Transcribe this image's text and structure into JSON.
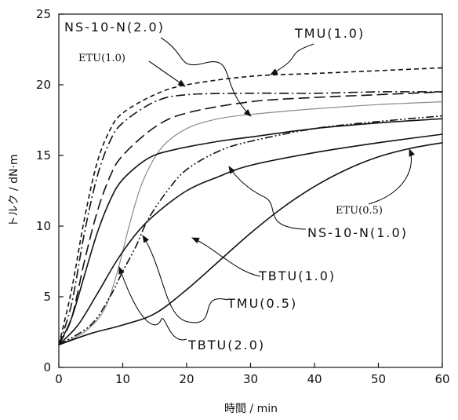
{
  "chart_data": {
    "type": "line",
    "title": "",
    "xlabel": "時間 / min",
    "ylabel": "トルク / dN·m",
    "xlim": [
      0,
      60
    ],
    "ylim": [
      0,
      25
    ],
    "xticks": [
      "0",
      "10",
      "20",
      "30",
      "40",
      "50",
      "60"
    ],
    "yticks": [
      "0",
      "5",
      "10",
      "15",
      "20",
      "25"
    ],
    "grid": false,
    "legend": "none",
    "series": [
      {
        "name": "ETU(1.0)",
        "style": "dashed",
        "color": "#111111",
        "x": [
          0,
          2,
          4,
          6,
          8,
          10,
          15,
          20,
          30,
          40,
          50,
          60
        ],
        "y": [
          1.6,
          5.5,
          10.5,
          14.5,
          16.8,
          18.0,
          19.3,
          20.0,
          20.6,
          20.8,
          21.0,
          21.2
        ]
      },
      {
        "name": "NS-10-N(2.0)",
        "style": "dashdot",
        "color": "#111111",
        "x": [
          0,
          2,
          4,
          6,
          8,
          10,
          15,
          20,
          30,
          40,
          50,
          60
        ],
        "y": [
          1.6,
          4.5,
          9.5,
          13.5,
          16.0,
          17.3,
          18.8,
          19.3,
          19.4,
          19.4,
          19.5,
          19.5
        ]
      },
      {
        "name": "TMU(1.0)",
        "style": "longdash",
        "color": "#111111",
        "x": [
          0,
          2,
          4,
          6,
          8,
          10,
          15,
          20,
          30,
          40,
          50,
          60
        ],
        "y": [
          1.6,
          3.5,
          7.5,
          11.0,
          13.5,
          15.0,
          17.0,
          18.0,
          18.8,
          19.1,
          19.3,
          19.5
        ]
      },
      {
        "name": "TBTU(2.0)",
        "style": "solid",
        "color": "#111111",
        "x": [
          0,
          4,
          7,
          9,
          11,
          13,
          16,
          20,
          25,
          30,
          40,
          50,
          60
        ],
        "y": [
          1.6,
          2.5,
          4.0,
          6.5,
          10.0,
          13.0,
          15.5,
          16.9,
          17.6,
          17.9,
          18.3,
          18.6,
          18.8
        ]
      },
      {
        "name": "TBTU(1.0)",
        "style": "dashdotdot",
        "color": "#111111",
        "x": [
          0,
          5,
          8,
          10,
          12,
          14,
          17,
          20,
          25,
          30,
          40,
          50,
          60
        ],
        "y": [
          1.6,
          3.0,
          5.0,
          6.8,
          8.5,
          10.5,
          12.5,
          14.0,
          15.3,
          16.0,
          16.9,
          17.4,
          17.8
        ]
      },
      {
        "name": "NS-10-N(1.0)",
        "style": "solid",
        "color": "#111111",
        "x": [
          0,
          2,
          4,
          6,
          8,
          10,
          14,
          18,
          25,
          30,
          40,
          50,
          60
        ],
        "y": [
          1.6,
          3.5,
          6.5,
          9.5,
          11.8,
          13.3,
          14.8,
          15.4,
          16.0,
          16.3,
          16.9,
          17.3,
          17.6
        ]
      },
      {
        "name": "TMU(0.5)",
        "style": "solid",
        "color": "#111111",
        "x": [
          0,
          3,
          6,
          9,
          12,
          15,
          20,
          25,
          30,
          40,
          50,
          60
        ],
        "y": [
          1.6,
          3.0,
          5.2,
          7.5,
          9.4,
          10.8,
          12.5,
          13.5,
          14.3,
          15.2,
          15.9,
          16.5
        ]
      },
      {
        "name": "ETU(0.5)",
        "style": "solid",
        "color": "#111111",
        "x": [
          0,
          5,
          10,
          15,
          20,
          25,
          30,
          35,
          40,
          45,
          50,
          55,
          60
        ],
        "y": [
          1.6,
          2.4,
          3.0,
          3.8,
          5.5,
          7.5,
          9.5,
          11.3,
          12.8,
          14.0,
          14.9,
          15.5,
          15.9
        ]
      }
    ],
    "annotations": [
      {
        "text": "NS-10-N(2.0)",
        "target_series": "NS-10-N(2.0)"
      },
      {
        "text": "TMU(1.0)",
        "target_series": "TMU(1.0)"
      },
      {
        "text": "ETU(1.0)",
        "target_series": "ETU(1.0)"
      },
      {
        "text": "ETU(0.5)",
        "target_series": "ETU(0.5)"
      },
      {
        "text": "NS-10-N(1.0)",
        "target_series": "NS-10-N(1.0)"
      },
      {
        "text": "TBTU(1.0)",
        "target_series": "TBTU(1.0)"
      },
      {
        "text": "TMU(0.5)",
        "target_series": "TMU(0.5)"
      },
      {
        "text": "TBTU(2.0)",
        "target_series": "TBTU(2.0)"
      }
    ]
  }
}
